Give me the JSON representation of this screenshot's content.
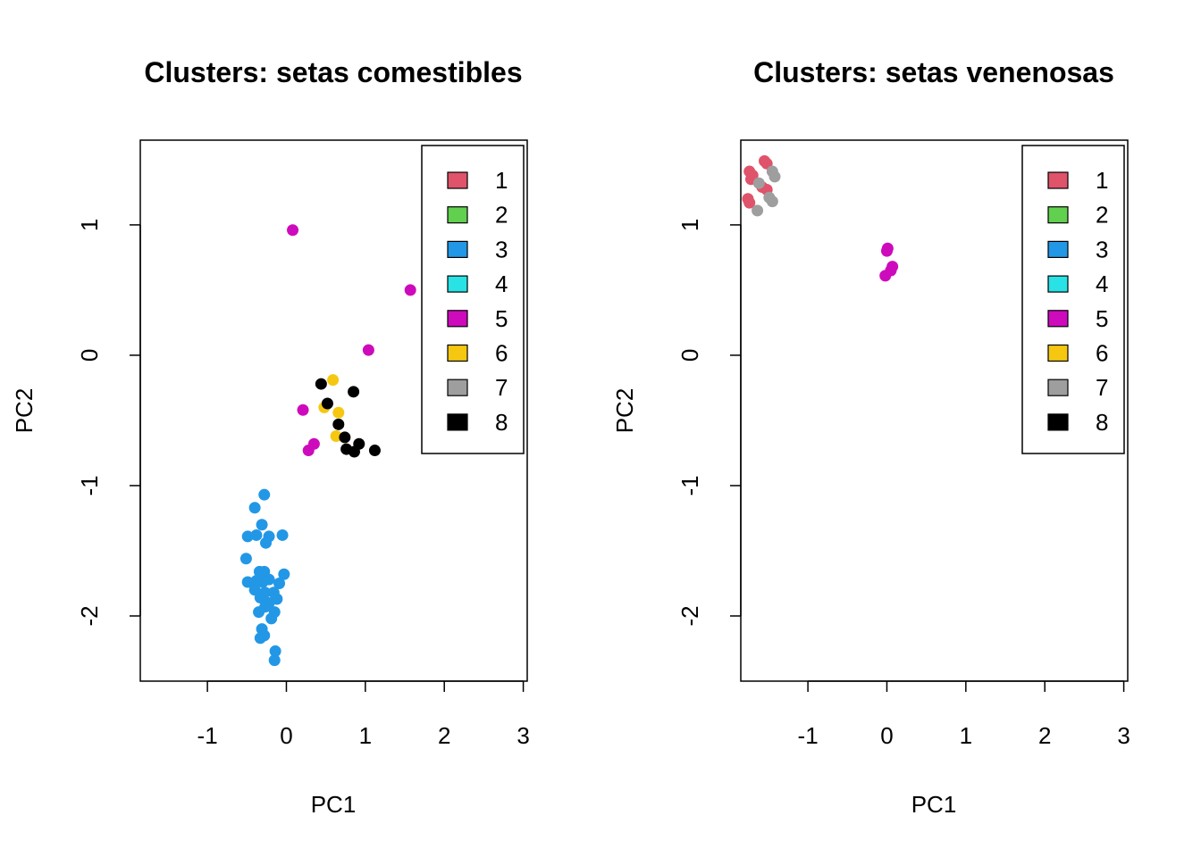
{
  "chart_data": [
    {
      "type": "scatter",
      "title": "Clusters: setas comestibles",
      "xlabel": "PC1",
      "ylabel": "PC2",
      "xlim": [
        -1.85,
        3.05
      ],
      "ylim": [
        -2.5,
        1.65
      ],
      "xticks": [
        -1,
        0,
        1,
        2,
        3
      ],
      "yticks": [
        -2,
        -1,
        0,
        1
      ],
      "legend_position": "top-right",
      "legend": [
        {
          "label": "1",
          "color": "#DF536B"
        },
        {
          "label": "2",
          "color": "#61D04F"
        },
        {
          "label": "3",
          "color": "#2297E6"
        },
        {
          "label": "4",
          "color": "#28E2E5"
        },
        {
          "label": "5",
          "color": "#CD0BBC"
        },
        {
          "label": "6",
          "color": "#F5C710"
        },
        {
          "label": "7",
          "color": "#9E9E9E"
        },
        {
          "label": "8",
          "color": "#000000"
        }
      ],
      "points": [
        {
          "x": 0.08,
          "y": 0.96,
          "cluster": "5"
        },
        {
          "x": 1.57,
          "y": 0.5,
          "cluster": "5"
        },
        {
          "x": 1.04,
          "y": 0.04,
          "cluster": "5"
        },
        {
          "x": 0.21,
          "y": -0.42,
          "cluster": "5"
        },
        {
          "x": 0.35,
          "y": -0.68,
          "cluster": "5"
        },
        {
          "x": 0.28,
          "y": -0.73,
          "cluster": "5"
        },
        {
          "x": 0.59,
          "y": -0.19,
          "cluster": "6"
        },
        {
          "x": 0.48,
          "y": -0.4,
          "cluster": "6"
        },
        {
          "x": 0.66,
          "y": -0.44,
          "cluster": "6"
        },
        {
          "x": 0.63,
          "y": -0.62,
          "cluster": "6"
        },
        {
          "x": 0.44,
          "y": -0.22,
          "cluster": "8"
        },
        {
          "x": 0.85,
          "y": -0.28,
          "cluster": "8"
        },
        {
          "x": 0.52,
          "y": -0.37,
          "cluster": "8"
        },
        {
          "x": 0.66,
          "y": -0.53,
          "cluster": "8"
        },
        {
          "x": 0.74,
          "y": -0.63,
          "cluster": "8"
        },
        {
          "x": 0.76,
          "y": -0.72,
          "cluster": "8"
        },
        {
          "x": 0.86,
          "y": -0.74,
          "cluster": "8"
        },
        {
          "x": 0.92,
          "y": -0.68,
          "cluster": "8"
        },
        {
          "x": 1.12,
          "y": -0.73,
          "cluster": "8"
        },
        {
          "x": -0.28,
          "y": -1.07,
          "cluster": "3"
        },
        {
          "x": -0.4,
          "y": -1.17,
          "cluster": "3"
        },
        {
          "x": -0.31,
          "y": -1.3,
          "cluster": "3"
        },
        {
          "x": -0.49,
          "y": -1.39,
          "cluster": "3"
        },
        {
          "x": -0.38,
          "y": -1.38,
          "cluster": "3"
        },
        {
          "x": -0.22,
          "y": -1.39,
          "cluster": "3"
        },
        {
          "x": -0.05,
          "y": -1.38,
          "cluster": "3"
        },
        {
          "x": -0.26,
          "y": -1.44,
          "cluster": "3"
        },
        {
          "x": -0.51,
          "y": -1.56,
          "cluster": "3"
        },
        {
          "x": -0.34,
          "y": -1.66,
          "cluster": "3"
        },
        {
          "x": -0.28,
          "y": -1.66,
          "cluster": "3"
        },
        {
          "x": -0.03,
          "y": -1.68,
          "cluster": "3"
        },
        {
          "x": -0.49,
          "y": -1.74,
          "cluster": "3"
        },
        {
          "x": -0.38,
          "y": -1.73,
          "cluster": "3"
        },
        {
          "x": -0.3,
          "y": -1.74,
          "cluster": "3"
        },
        {
          "x": -0.22,
          "y": -1.72,
          "cluster": "3"
        },
        {
          "x": -0.09,
          "y": -1.75,
          "cluster": "3"
        },
        {
          "x": -0.4,
          "y": -1.8,
          "cluster": "3"
        },
        {
          "x": -0.27,
          "y": -1.82,
          "cluster": "3"
        },
        {
          "x": -0.16,
          "y": -1.82,
          "cluster": "3"
        },
        {
          "x": -0.33,
          "y": -1.86,
          "cluster": "3"
        },
        {
          "x": -0.22,
          "y": -1.9,
          "cluster": "3"
        },
        {
          "x": -0.12,
          "y": -1.87,
          "cluster": "3"
        },
        {
          "x": -0.35,
          "y": -1.97,
          "cluster": "3"
        },
        {
          "x": -0.27,
          "y": -1.93,
          "cluster": "3"
        },
        {
          "x": -0.15,
          "y": -1.97,
          "cluster": "3"
        },
        {
          "x": -0.19,
          "y": -2.02,
          "cluster": "3"
        },
        {
          "x": -0.31,
          "y": -2.1,
          "cluster": "3"
        },
        {
          "x": -0.33,
          "y": -2.17,
          "cluster": "3"
        },
        {
          "x": -0.28,
          "y": -2.15,
          "cluster": "3"
        },
        {
          "x": -0.14,
          "y": -2.27,
          "cluster": "3"
        },
        {
          "x": -0.15,
          "y": -2.34,
          "cluster": "3"
        }
      ]
    },
    {
      "type": "scatter",
      "title": "Clusters: setas venenosas",
      "xlabel": "PC1",
      "ylabel": "PC2",
      "xlim": [
        -1.85,
        3.05
      ],
      "ylim": [
        -2.5,
        1.65
      ],
      "xticks": [
        -1,
        0,
        1,
        2,
        3
      ],
      "yticks": [
        -2,
        -1,
        0,
        1
      ],
      "legend_position": "top-right",
      "legend": [
        {
          "label": "1",
          "color": "#DF536B"
        },
        {
          "label": "2",
          "color": "#61D04F"
        },
        {
          "label": "3",
          "color": "#2297E6"
        },
        {
          "label": "4",
          "color": "#28E2E5"
        },
        {
          "label": "5",
          "color": "#CD0BBC"
        },
        {
          "label": "6",
          "color": "#F5C710"
        },
        {
          "label": "7",
          "color": "#9E9E9E"
        },
        {
          "label": "8",
          "color": "#000000"
        }
      ],
      "points": [
        {
          "x": -1.55,
          "y": 1.49,
          "cluster": "1"
        },
        {
          "x": -1.52,
          "y": 1.47,
          "cluster": "1"
        },
        {
          "x": -1.74,
          "y": 1.41,
          "cluster": "1"
        },
        {
          "x": -1.7,
          "y": 1.38,
          "cluster": "1"
        },
        {
          "x": -1.72,
          "y": 1.35,
          "cluster": "1"
        },
        {
          "x": -1.58,
          "y": 1.29,
          "cluster": "1"
        },
        {
          "x": -1.52,
          "y": 1.27,
          "cluster": "1"
        },
        {
          "x": -1.76,
          "y": 1.2,
          "cluster": "1"
        },
        {
          "x": -1.74,
          "y": 1.17,
          "cluster": "1"
        },
        {
          "x": -1.45,
          "y": 1.41,
          "cluster": "7"
        },
        {
          "x": -1.42,
          "y": 1.37,
          "cluster": "7"
        },
        {
          "x": -1.62,
          "y": 1.32,
          "cluster": "7"
        },
        {
          "x": -1.49,
          "y": 1.21,
          "cluster": "7"
        },
        {
          "x": -1.45,
          "y": 1.18,
          "cluster": "7"
        },
        {
          "x": -1.64,
          "y": 1.11,
          "cluster": "7"
        },
        {
          "x": 0.01,
          "y": 0.82,
          "cluster": "5"
        },
        {
          "x": 0.0,
          "y": 0.8,
          "cluster": "5"
        },
        {
          "x": 0.07,
          "y": 0.68,
          "cluster": "5"
        },
        {
          "x": 0.05,
          "y": 0.65,
          "cluster": "5"
        },
        {
          "x": -0.02,
          "y": 0.61,
          "cluster": "5"
        }
      ]
    }
  ]
}
